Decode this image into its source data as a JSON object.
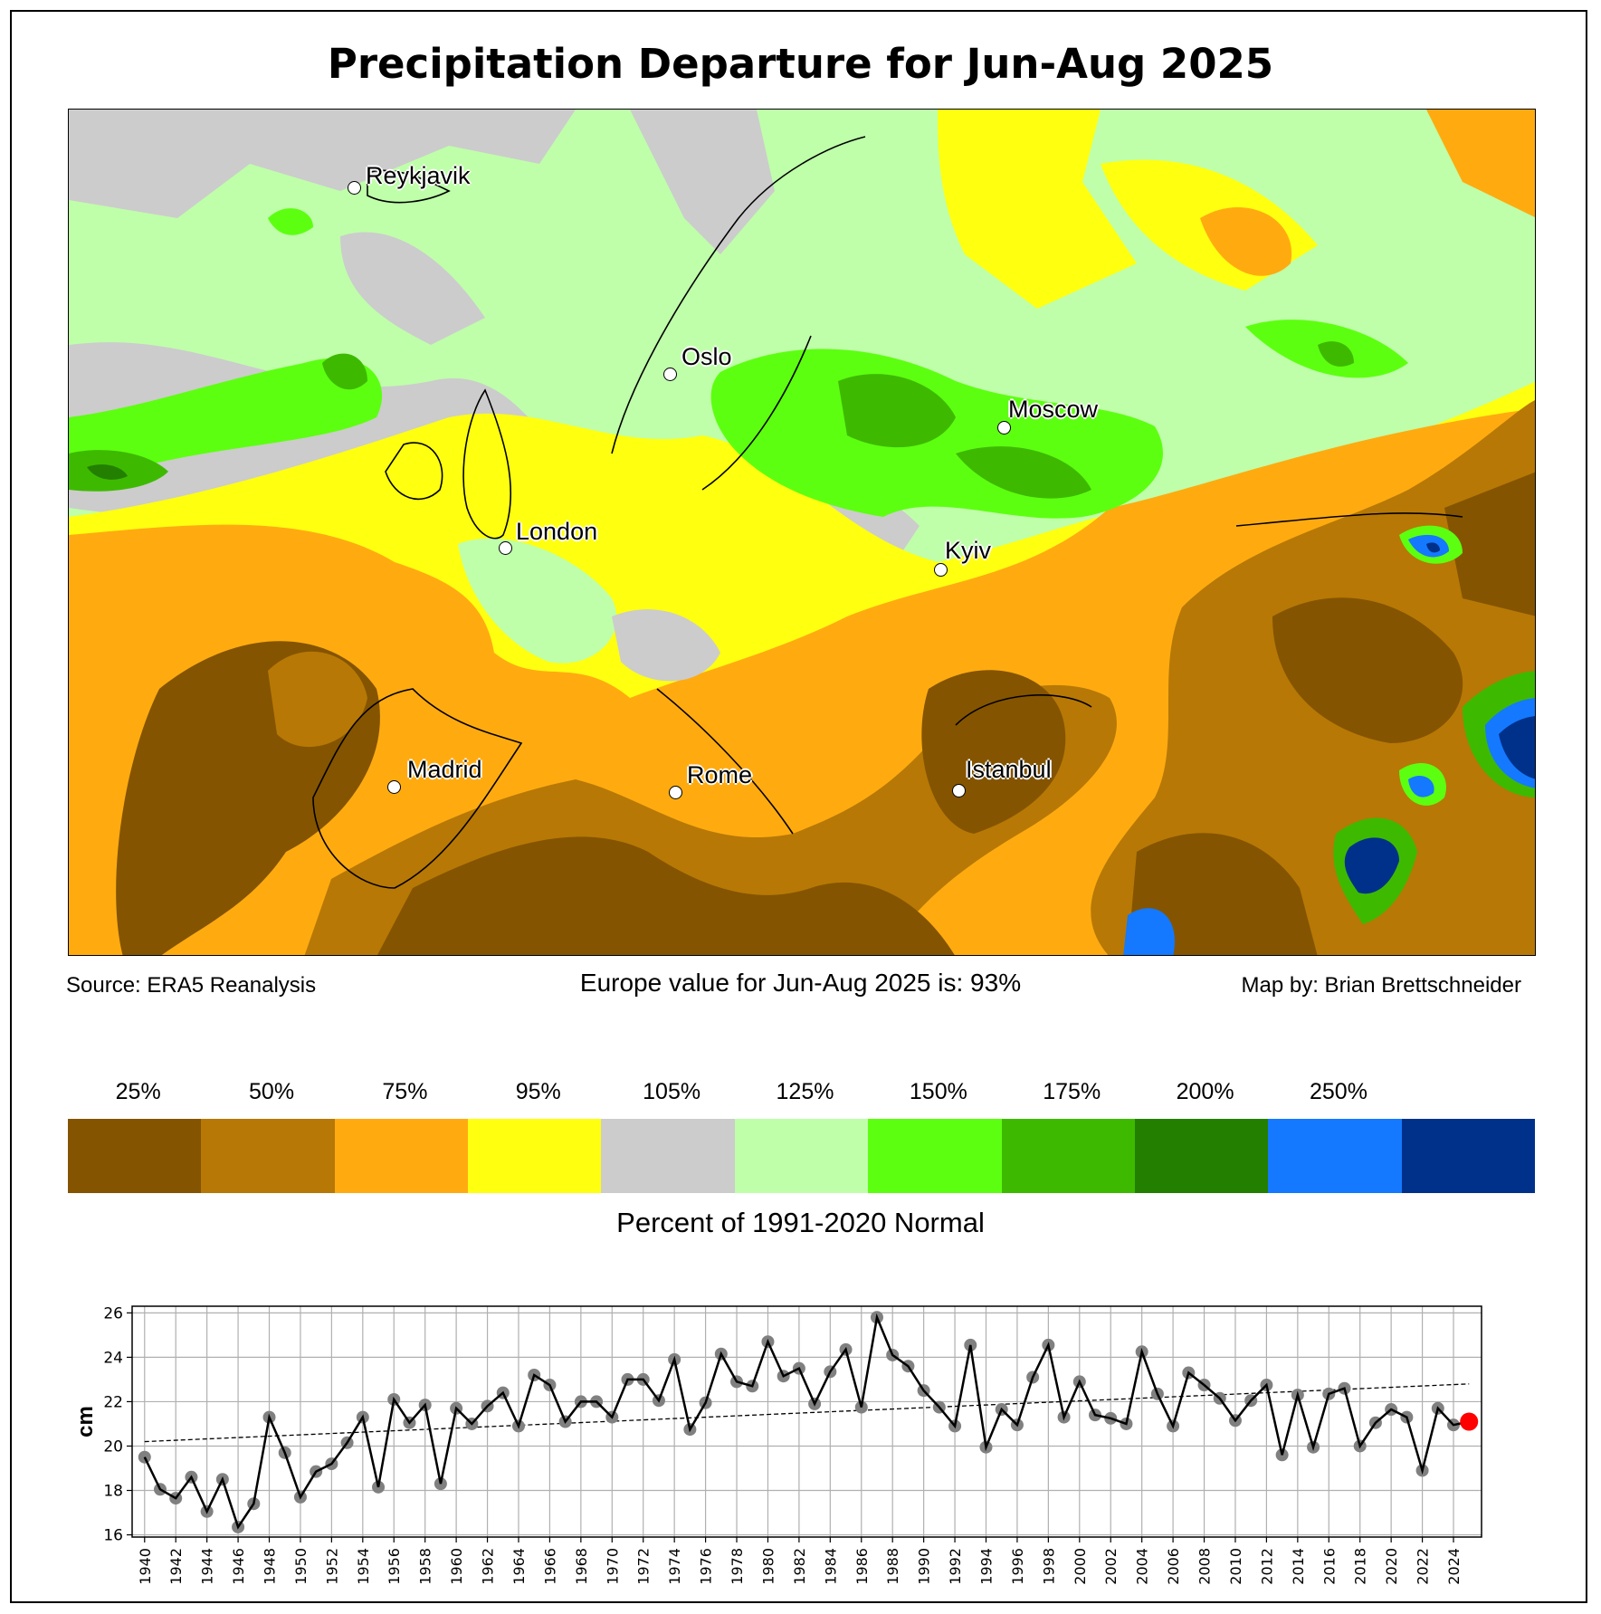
{
  "title": "Precipitation Departure for Jun-Aug 2025",
  "cities": [
    {
      "name": "Reykjavik"
    },
    {
      "name": "Oslo"
    },
    {
      "name": "Moscow"
    },
    {
      "name": "London"
    },
    {
      "name": "Kyiv"
    },
    {
      "name": "Madrid"
    },
    {
      "name": "Rome"
    },
    {
      "name": "Istanbul"
    }
  ],
  "footer": {
    "source": "Source: ERA5 Reanalysis",
    "value_text": "Europe value for Jun-Aug 2025 is: 93%",
    "credit": "Map by: Brian Brettschneider"
  },
  "colorbar": {
    "labels": [
      "25%",
      "50%",
      "75%",
      "95%",
      "105%",
      "125%",
      "150%",
      "175%",
      "200%",
      "250%"
    ],
    "colors": [
      "#845400",
      "#b77805",
      "#ffab10",
      "#ffff10",
      "#cccccc",
      "#bfffaa",
      "#5dff10",
      "#3dba00",
      "#237f00",
      "#1479ff",
      "#00318a"
    ],
    "title": "Percent of 1991-2020 Normal"
  },
  "chart_data": {
    "type": "line",
    "title": "",
    "xlabel": "",
    "ylabel": "cm",
    "xlim": [
      1939.2,
      2025.8
    ],
    "ylim": [
      15.9,
      26.3
    ],
    "yticks": [
      16,
      18,
      20,
      22,
      24,
      26
    ],
    "xticks": [
      1940,
      1942,
      1944,
      1946,
      1948,
      1950,
      1952,
      1954,
      1956,
      1958,
      1960,
      1962,
      1964,
      1966,
      1968,
      1970,
      1972,
      1974,
      1976,
      1978,
      1980,
      1982,
      1984,
      1986,
      1988,
      1990,
      1992,
      1994,
      1996,
      1998,
      2000,
      2002,
      2004,
      2006,
      2008,
      2010,
      2012,
      2014,
      2016,
      2018,
      2020,
      2022,
      2024
    ],
    "grid": true,
    "years": [
      1940,
      1941,
      1942,
      1943,
      1944,
      1945,
      1946,
      1947,
      1948,
      1949,
      1950,
      1951,
      1952,
      1953,
      1954,
      1955,
      1956,
      1957,
      1958,
      1959,
      1960,
      1961,
      1962,
      1963,
      1964,
      1965,
      1966,
      1967,
      1968,
      1969,
      1970,
      1971,
      1972,
      1973,
      1974,
      1975,
      1976,
      1977,
      1978,
      1979,
      1980,
      1981,
      1982,
      1983,
      1984,
      1985,
      1986,
      1987,
      1988,
      1989,
      1990,
      1991,
      1992,
      1993,
      1994,
      1995,
      1996,
      1997,
      1998,
      1999,
      2000,
      2001,
      2002,
      2003,
      2004,
      2005,
      2006,
      2007,
      2008,
      2009,
      2010,
      2011,
      2012,
      2013,
      2014,
      2015,
      2016,
      2017,
      2018,
      2019,
      2020,
      2021,
      2022,
      2023,
      2024,
      2025
    ],
    "values": [
      19.5,
      18.05,
      17.65,
      18.6,
      17.05,
      18.5,
      16.35,
      17.4,
      21.3,
      19.7,
      17.7,
      18.85,
      19.2,
      20.15,
      21.3,
      18.15,
      22.1,
      21.05,
      21.85,
      18.3,
      21.7,
      21.0,
      21.8,
      22.4,
      20.9,
      23.2,
      22.75,
      21.1,
      22.0,
      22.0,
      21.3,
      23.0,
      23.0,
      22.05,
      23.9,
      20.75,
      21.95,
      24.15,
      22.9,
      22.7,
      24.7,
      23.15,
      23.5,
      21.9,
      23.35,
      24.35,
      21.75,
      25.8,
      24.1,
      23.6,
      22.5,
      21.75,
      20.9,
      24.55,
      19.95,
      21.65,
      20.95,
      23.1,
      24.55,
      21.3,
      22.9,
      21.4,
      21.25,
      21.0,
      24.25,
      22.35,
      20.9,
      23.3,
      22.75,
      22.15,
      21.15,
      22.05,
      22.75,
      19.6,
      22.3,
      19.95,
      22.35,
      22.6,
      20.0,
      21.05,
      21.65,
      21.3,
      18.9,
      21.7,
      20.95,
      21.1
    ],
    "trend": {
      "x": [
        1940,
        2025
      ],
      "y": [
        20.2,
        22.8
      ]
    },
    "highlight": {
      "year": 2025,
      "color": "#ff0000"
    },
    "marker_color": "#808080",
    "line_color": "#000000"
  }
}
